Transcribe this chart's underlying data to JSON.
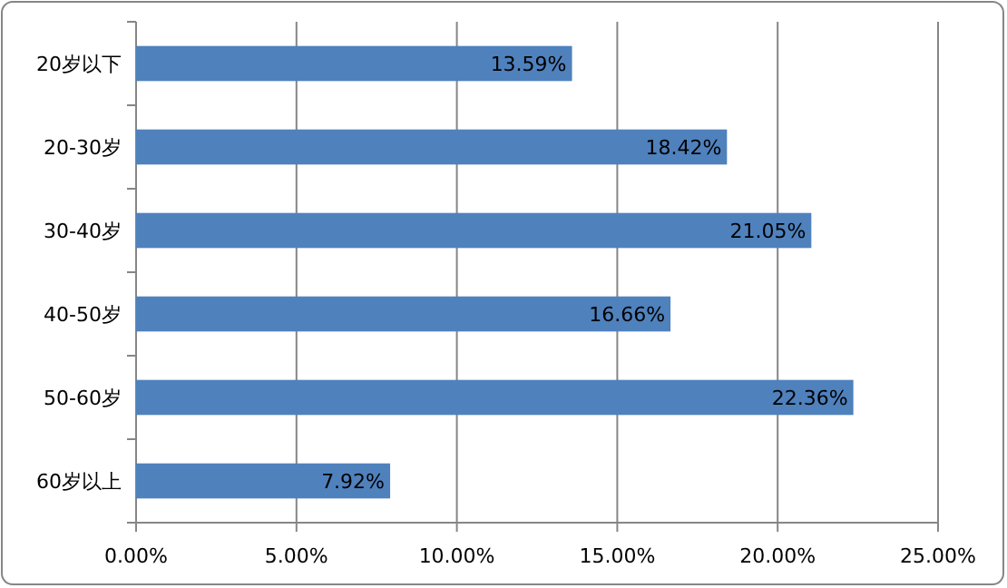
{
  "chart_data": {
    "type": "bar",
    "orientation": "horizontal",
    "categories": [
      "20岁以下",
      "20-30岁",
      "30-40岁",
      "40-50岁",
      "50-60岁",
      "60岁以上"
    ],
    "values": [
      13.59,
      18.42,
      21.05,
      16.66,
      22.36,
      7.92
    ],
    "value_labels": [
      "13.59%",
      "18.42%",
      "21.05%",
      "16.66%",
      "22.36%",
      "7.92%"
    ],
    "color": "#4f81bd",
    "xlim": [
      0,
      25
    ],
    "xticks": [
      {
        "value": 0,
        "label": "0.00%"
      },
      {
        "value": 5,
        "label": "5.00%"
      },
      {
        "value": 10,
        "label": "10.00%"
      },
      {
        "value": 15,
        "label": "15.00%"
      },
      {
        "value": 20,
        "label": "20.00%"
      },
      {
        "value": 25,
        "label": "25.00%"
      }
    ],
    "grid": "x"
  }
}
